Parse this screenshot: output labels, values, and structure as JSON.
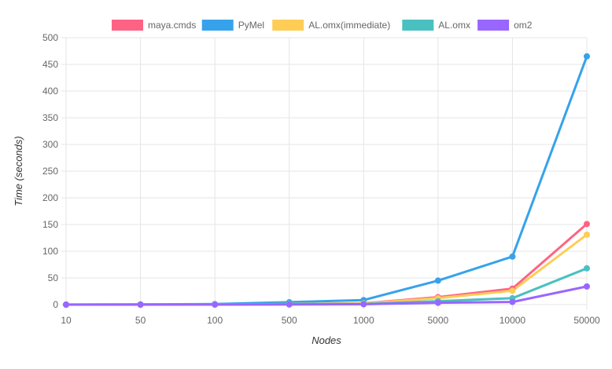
{
  "chart_data": {
    "type": "line",
    "title": "",
    "xlabel": "Nodes",
    "ylabel": "Time (seconds)",
    "categories": [
      "10",
      "50",
      "100",
      "500",
      "1000",
      "5000",
      "10000",
      "50000"
    ],
    "ylim": [
      0,
      500
    ],
    "yticks": [
      0,
      50,
      100,
      150,
      200,
      250,
      300,
      350,
      400,
      450,
      500
    ],
    "grid": true,
    "legend_position": "top",
    "series": [
      {
        "name": "maya.cmds",
        "color": "#ff6384",
        "values": [
          0.0,
          0.1,
          0.3,
          1.2,
          2.5,
          14,
          30,
          151
        ]
      },
      {
        "name": "PyMel",
        "color": "#36a2eb",
        "values": [
          0.1,
          0.4,
          1.0,
          4.5,
          8.5,
          45,
          90,
          465
        ]
      },
      {
        "name": "AL.omx(immediate)",
        "color": "#ffcd56",
        "values": [
          0.0,
          0.1,
          0.2,
          1.0,
          2.2,
          12,
          26,
          131
        ]
      },
      {
        "name": "AL.omx",
        "color": "#4bc0c0",
        "values": [
          0.0,
          0.1,
          0.1,
          0.6,
          1.3,
          6.5,
          12,
          68
        ]
      },
      {
        "name": "om2",
        "color": "#9966ff",
        "values": [
          0.0,
          0.0,
          0.1,
          0.3,
          0.7,
          3.5,
          5,
          34
        ]
      }
    ]
  }
}
